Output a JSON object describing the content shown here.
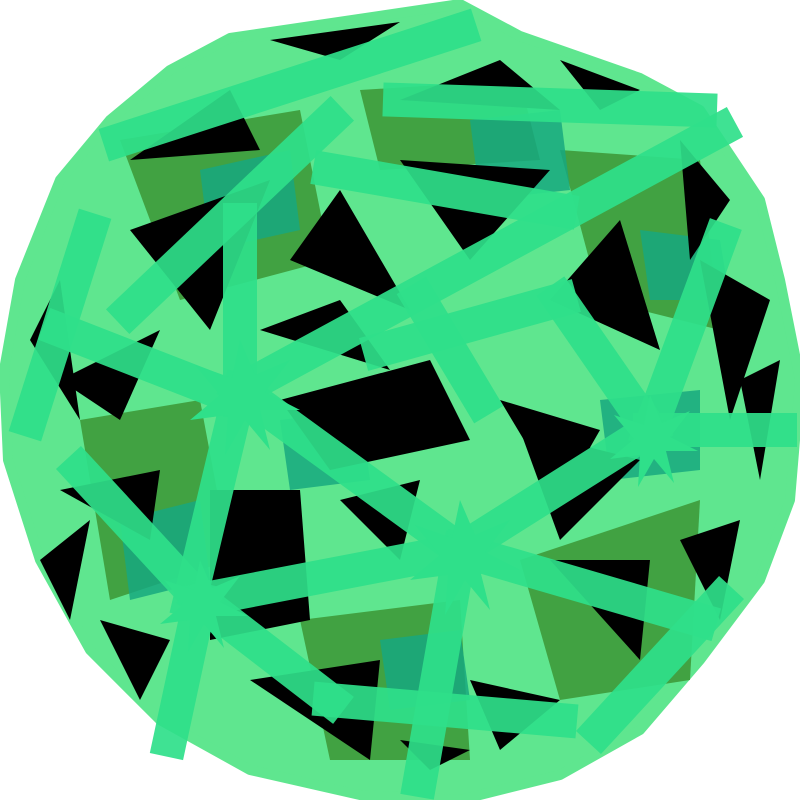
{
  "colors": {
    "background": "#ffffff",
    "frame_bright": "#2fe08a",
    "frame_glow": "#5fe68f",
    "frame_dark": "#3e9a3a",
    "frame_teal": "#17a87f",
    "hole": "#000000"
  },
  "icon": "geodesic-sphere-illustration"
}
